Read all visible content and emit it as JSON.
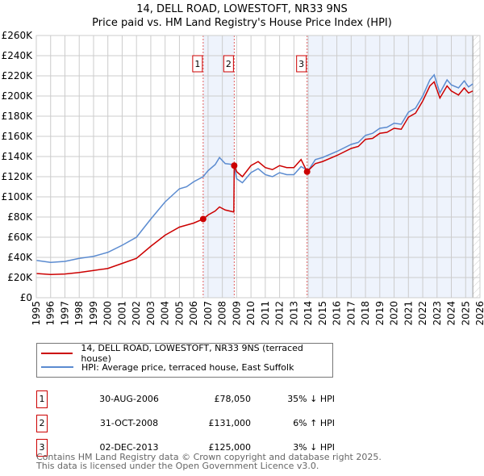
{
  "chart_data": {
    "type": "line",
    "title": "14, DELL ROAD, LOWESTOFT, NR33 9NS",
    "subtitle": "Price paid vs. HM Land Registry's House Price Index (HPI)",
    "xlim": [
      1995,
      2026
    ],
    "ylim": [
      0,
      260000
    ],
    "yticks": [
      0,
      20000,
      40000,
      60000,
      80000,
      100000,
      120000,
      140000,
      160000,
      180000,
      200000,
      220000,
      240000,
      260000
    ],
    "ytick_labels": [
      "£0",
      "£20K",
      "£40K",
      "£60K",
      "£80K",
      "£100K",
      "£120K",
      "£140K",
      "£160K",
      "£180K",
      "£200K",
      "£220K",
      "£240K",
      "£260K"
    ],
    "xtick_labels": [
      "1995",
      "1996",
      "1997",
      "1998",
      "1999",
      "2000",
      "2001",
      "2002",
      "2003",
      "2004",
      "2005",
      "2006",
      "2007",
      "2008",
      "2009",
      "2010",
      "2011",
      "2012",
      "2013",
      "2014",
      "2015",
      "2016",
      "2017",
      "2018",
      "2019",
      "2020",
      "2021",
      "2022",
      "2023",
      "2024",
      "2025",
      "2026"
    ],
    "grid": true,
    "series": [
      {
        "name": "14, DELL ROAD, LOWESTOFT, NR33 9NS (terraced house)",
        "color": "#cc0000",
        "x": [
          1995,
          1996,
          1997,
          1998,
          1999,
          2000,
          2001,
          2002,
          2003,
          2004,
          2005,
          2005.5,
          2006,
          2006.66,
          2007,
          2007.5,
          2007.8,
          2008.2,
          2008.8,
          2008.83,
          2009,
          2009.4,
          2010,
          2010.5,
          2011,
          2011.5,
          2012,
          2012.5,
          2013,
          2013.5,
          2013.92,
          2014.5,
          2015,
          2016,
          2017,
          2017.5,
          2018,
          2018.5,
          2019,
          2019.5,
          2020,
          2020.5,
          2021,
          2021.5,
          2022,
          2022.5,
          2022.8,
          2023.2,
          2023.7,
          2024,
          2024.5,
          2024.9,
          2025.2,
          2025.5
        ],
        "y": [
          24,
          23,
          23.5,
          25,
          27,
          29,
          34,
          39,
          51,
          62,
          70,
          72,
          74,
          78,
          82,
          86,
          90,
          87,
          85,
          131,
          125,
          120,
          131,
          135,
          129,
          127,
          131,
          129,
          129,
          137,
          125,
          133,
          135,
          141,
          148,
          150,
          157,
          158,
          163,
          164,
          168,
          167,
          179,
          183,
          195,
          210,
          214,
          198,
          210,
          205,
          201,
          208,
          203,
          205
        ]
      },
      {
        "name": "HPI: Average price, terraced house, East Suffolk",
        "color": "#5b8bd0",
        "x": [
          1995,
          1996,
          1997,
          1998,
          1999,
          2000,
          2001,
          2002,
          2003,
          2004,
          2005,
          2005.5,
          2006,
          2006.66,
          2007,
          2007.5,
          2007.8,
          2008.2,
          2008.8,
          2009,
          2009.4,
          2010,
          2010.5,
          2011,
          2011.5,
          2012,
          2012.5,
          2013,
          2013.5,
          2014,
          2014.5,
          2015,
          2016,
          2017,
          2017.5,
          2018,
          2018.5,
          2019,
          2019.5,
          2020,
          2020.5,
          2021,
          2021.5,
          2022,
          2022.5,
          2022.8,
          2023.2,
          2023.7,
          2024,
          2024.5,
          2024.9,
          2025.2,
          2025.5
        ],
        "y": [
          37,
          35,
          36,
          39,
          41,
          45,
          52,
          60,
          78,
          95,
          108,
          110,
          115,
          120,
          126,
          132,
          139,
          133,
          132,
          118,
          114,
          124,
          128,
          122,
          120,
          124,
          122,
          122,
          130,
          126,
          137,
          139,
          145,
          152,
          154,
          161,
          163,
          168,
          169,
          173,
          172,
          184,
          188,
          200,
          216,
          221,
          203,
          216,
          211,
          208,
          215,
          209,
          212
        ]
      }
    ],
    "y_units": "thousands GBP",
    "sales": [
      {
        "num": "1",
        "x": 2006.66,
        "y": 78.05,
        "date": "30-AUG-2006",
        "price": "£78,050",
        "hpi": "35% ↓ HPI"
      },
      {
        "num": "2",
        "x": 2008.83,
        "y": 131,
        "date": "31-OCT-2008",
        "price": "£131,000",
        "hpi": "6% ↑ HPI"
      },
      {
        "num": "3",
        "x": 2013.92,
        "y": 125,
        "date": "02-DEC-2013",
        "price": "£125,000",
        "hpi": "3% ↓ HPI"
      }
    ],
    "shaded_ranges": [
      [
        2006.66,
        2008.83
      ],
      [
        2013.92,
        2025.5
      ]
    ],
    "projection_start": 2025.5
  },
  "legend": {
    "item1": "14, DELL ROAD, LOWESTOFT, NR33 9NS (terraced house)",
    "item2": "HPI: Average price, terraced house, East Suffolk"
  },
  "footer": {
    "line1": "Contains HM Land Registry data © Crown copyright and database right 2025.",
    "line2": "This data is licensed under the Open Government Licence v3.0."
  }
}
